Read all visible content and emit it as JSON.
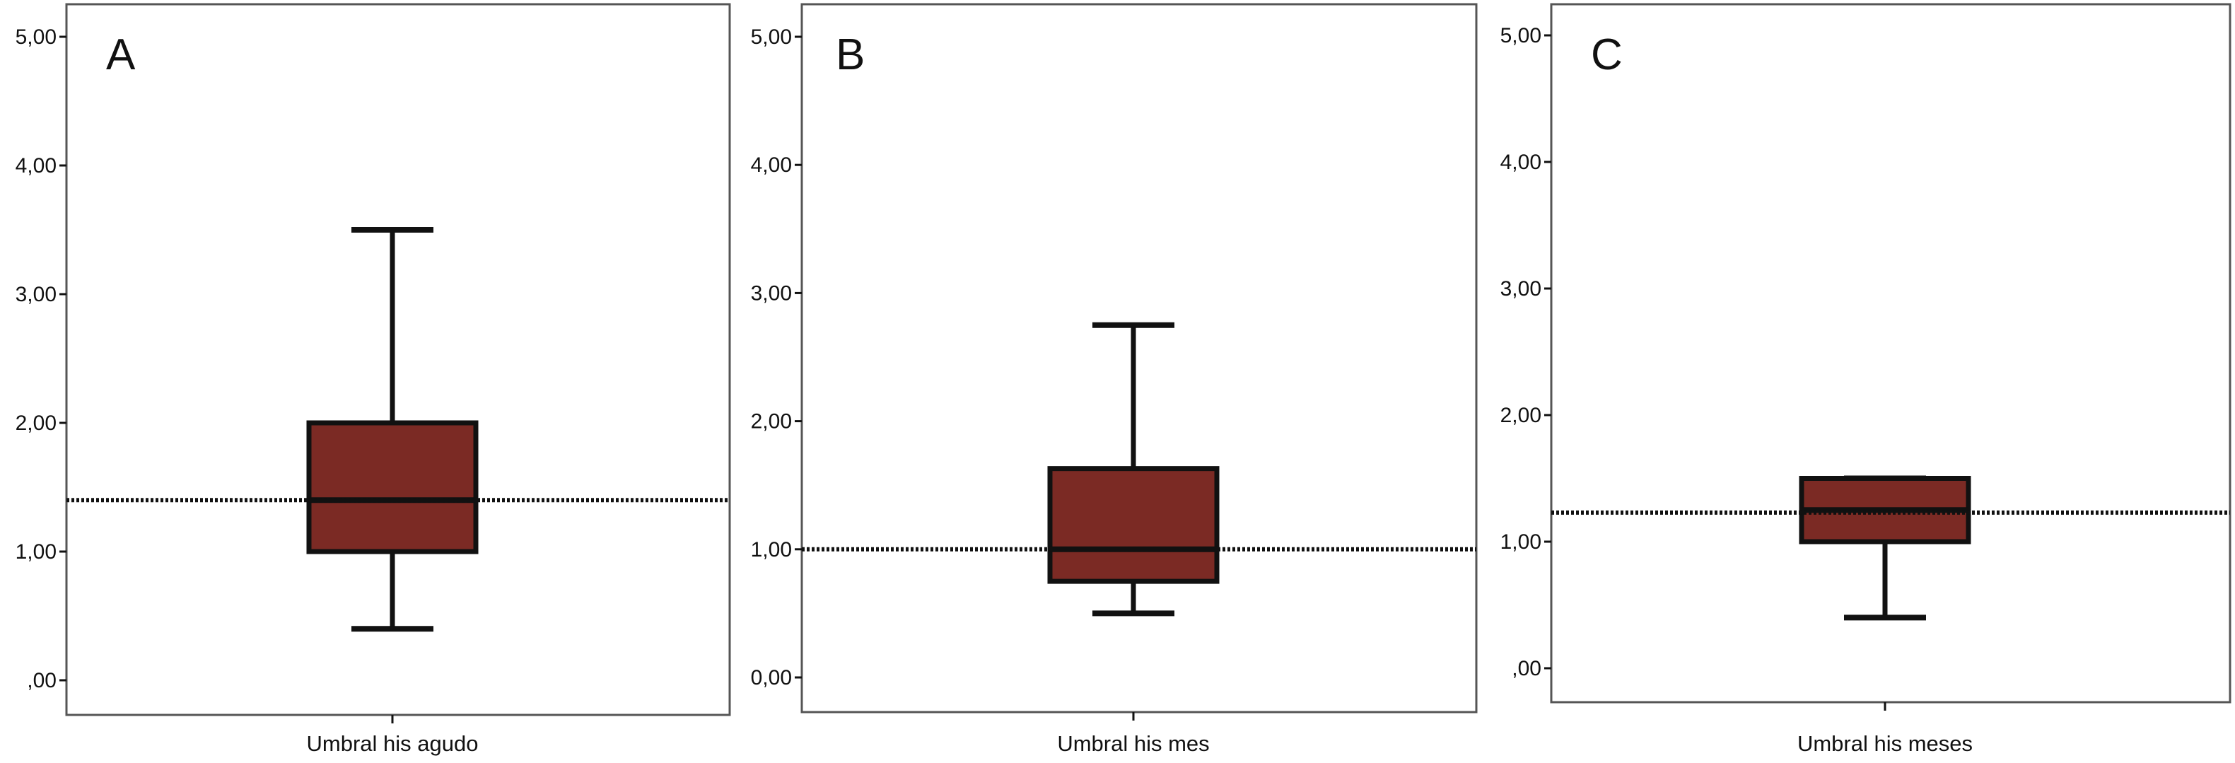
{
  "chart_data": [
    {
      "type": "box",
      "panel_label": "A",
      "xlabel": "Umbral his agudo",
      "ylim": [
        0,
        5.25
      ],
      "yticks": [
        0,
        1,
        2,
        3,
        4,
        5
      ],
      "ytick_labels": [
        ",00",
        "1,00",
        "2,00",
        "3,00",
        "4,00",
        "5,00"
      ],
      "box": {
        "whisker_low": 0.4,
        "q1": 1.0,
        "median": 1.4,
        "q3": 2.0,
        "whisker_high": 3.5
      },
      "reference_line": 1.4
    },
    {
      "type": "box",
      "panel_label": "B",
      "xlabel": "Umbral his mes",
      "ylim": [
        -0.25,
        5.25
      ],
      "yticks": [
        0,
        1,
        2,
        3,
        4,
        5
      ],
      "ytick_labels": [
        "0,00",
        "1,00",
        "2,00",
        "3,00",
        "4,00",
        "5,00"
      ],
      "box": {
        "whisker_low": 0.5,
        "q1": 0.75,
        "median": 1.0,
        "q3": 1.63,
        "whisker_high": 2.75
      },
      "reference_line": 1.0
    },
    {
      "type": "box",
      "panel_label": "C",
      "xlabel": "Umbral his meses",
      "ylim": [
        -0.25,
        5.25
      ],
      "yticks": [
        0,
        1,
        2,
        3,
        4,
        5
      ],
      "ytick_labels": [
        ",00",
        "1,00",
        "2,00",
        "3,00",
        "4,00",
        "5,00"
      ],
      "box": {
        "whisker_low": 0.4,
        "q1": 1.0,
        "median": 1.25,
        "q3": 1.5,
        "whisker_high": 1.5
      },
      "reference_line": 1.23
    }
  ],
  "colors": {
    "box_fill": "#7b2a24",
    "stroke": "#111111",
    "frame": "#555555"
  }
}
